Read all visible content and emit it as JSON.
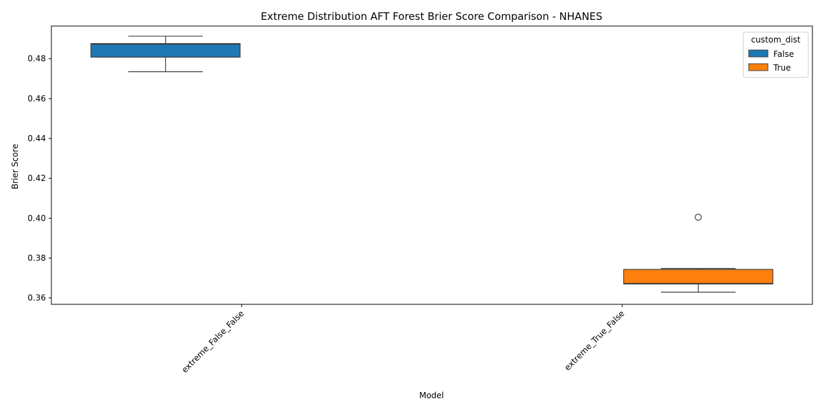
{
  "chart_data": {
    "type": "box",
    "title": "Extreme Distribution AFT Forest Brier Score Comparison - NHANES",
    "xlabel": "Model",
    "ylabel": "Brier Score",
    "ylim": [
      0.3568,
      0.4964
    ],
    "yticks": [
      0.36,
      0.38,
      0.4,
      0.42,
      0.44,
      0.46,
      0.48
    ],
    "ytick_labels": [
      "0.36",
      "0.38",
      "0.40",
      "0.42",
      "0.44",
      "0.46",
      "0.48"
    ],
    "categories": [
      "extreme_False_False",
      "extreme_True_False"
    ],
    "grid": false,
    "legend": {
      "title": "custom_dist",
      "placement": "top-right",
      "entries": [
        {
          "label": "False",
          "color": "#1f77b4"
        },
        {
          "label": "True",
          "color": "#ff7f0e"
        }
      ]
    },
    "series": [
      {
        "name": "False",
        "color": "#1f77b4",
        "boxes": [
          {
            "category": "extreme_False_False",
            "whisker_low": 0.4735,
            "q1": 0.4808,
            "median": 0.4873,
            "q3": 0.4876,
            "whisker_high": 0.4913,
            "outliers": []
          }
        ]
      },
      {
        "name": "True",
        "color": "#ff7f0e",
        "boxes": [
          {
            "category": "extreme_True_False",
            "whisker_low": 0.3629,
            "q1": 0.367,
            "median": 0.3673,
            "q3": 0.3743,
            "whisker_high": 0.3748,
            "outliers": [
              0.4005
            ]
          }
        ]
      }
    ]
  }
}
